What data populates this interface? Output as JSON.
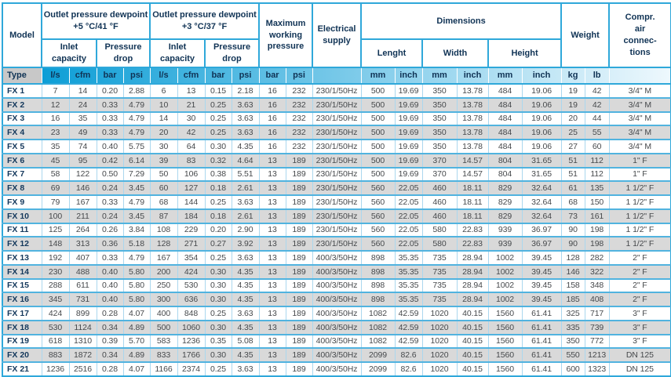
{
  "header": {
    "model": "Model",
    "dewpoint5": "Outlet pressure dewpoint\n+5 °C/41 °F",
    "dewpoint3": "Outlet pressure dewpoint\n+3 °C/37 °F",
    "inlet_capacity": "Inlet\ncapacity",
    "pressure_drop": "Pressure\ndrop",
    "max_pressure": "Maximum\nworking\npressure",
    "electrical": "Electrical\nsupply",
    "dimensions": "Dimensions",
    "length": "Lenght",
    "width": "Width",
    "height": "Height",
    "weight": "Weight",
    "connections": "Compr.\nair\nconnec-\ntions"
  },
  "units": {
    "type": "Type",
    "ls": "l/s",
    "cfm": "cfm",
    "bar": "bar",
    "psi": "psi",
    "mm": "mm",
    "inch": "inch",
    "kg": "kg",
    "lb": "lb"
  },
  "colors": {
    "accent_border": "#2fa8da",
    "row_separator": "#51b3df",
    "cell_divider": "#aad7ee",
    "alt_row": "#d9d9d9",
    "type_cell": "#c8c8c8",
    "units_gradient_start": "#0d9ed6",
    "units_gradient_end": "#eef8fd",
    "header_text": "#103355",
    "data_text": "#46494c"
  },
  "rows": [
    [
      "FX 1",
      "7",
      "14",
      "0.20",
      "2.88",
      "6",
      "13",
      "0.15",
      "2.18",
      "16",
      "232",
      "230/1/50Hz",
      "500",
      "19.69",
      "350",
      "13.78",
      "484",
      "19.06",
      "19",
      "42",
      "3/4\" M"
    ],
    [
      "FX 2",
      "12",
      "24",
      "0.33",
      "4.79",
      "10",
      "21",
      "0.25",
      "3.63",
      "16",
      "232",
      "230/1/50Hz",
      "500",
      "19.69",
      "350",
      "13.78",
      "484",
      "19.06",
      "19",
      "42",
      "3/4\" M"
    ],
    [
      "FX 3",
      "16",
      "35",
      "0.33",
      "4.79",
      "14",
      "30",
      "0.25",
      "3.63",
      "16",
      "232",
      "230/1/50Hz",
      "500",
      "19.69",
      "350",
      "13.78",
      "484",
      "19.06",
      "20",
      "44",
      "3/4\" M"
    ],
    [
      "FX 4",
      "23",
      "49",
      "0.33",
      "4.79",
      "20",
      "42",
      "0.25",
      "3.63",
      "16",
      "232",
      "230/1/50Hz",
      "500",
      "19.69",
      "350",
      "13.78",
      "484",
      "19.06",
      "25",
      "55",
      "3/4\" M"
    ],
    [
      "FX 5",
      "35",
      "74",
      "0.40",
      "5.75",
      "30",
      "64",
      "0.30",
      "4.35",
      "16",
      "232",
      "230/1/50Hz",
      "500",
      "19.69",
      "350",
      "13.78",
      "484",
      "19.06",
      "27",
      "60",
      "3/4\" M"
    ],
    [
      "FX 6",
      "45",
      "95",
      "0.42",
      "6.14",
      "39",
      "83",
      "0.32",
      "4.64",
      "13",
      "189",
      "230/1/50Hz",
      "500",
      "19.69",
      "370",
      "14.57",
      "804",
      "31.65",
      "51",
      "112",
      "1\" F"
    ],
    [
      "FX 7",
      "58",
      "122",
      "0.50",
      "7.29",
      "50",
      "106",
      "0.38",
      "5.51",
      "13",
      "189",
      "230/1/50Hz",
      "500",
      "19.69",
      "370",
      "14.57",
      "804",
      "31.65",
      "51",
      "112",
      "1\" F"
    ],
    [
      "FX 8",
      "69",
      "146",
      "0.24",
      "3.45",
      "60",
      "127",
      "0.18",
      "2.61",
      "13",
      "189",
      "230/1/50Hz",
      "560",
      "22.05",
      "460",
      "18.11",
      "829",
      "32.64",
      "61",
      "135",
      "1 1/2\" F"
    ],
    [
      "FX 9",
      "79",
      "167",
      "0.33",
      "4.79",
      "68",
      "144",
      "0.25",
      "3.63",
      "13",
      "189",
      "230/1/50Hz",
      "560",
      "22.05",
      "460",
      "18.11",
      "829",
      "32.64",
      "68",
      "150",
      "1 1/2\" F"
    ],
    [
      "FX 10",
      "100",
      "211",
      "0.24",
      "3.45",
      "87",
      "184",
      "0.18",
      "2.61",
      "13",
      "189",
      "230/1/50Hz",
      "560",
      "22.05",
      "460",
      "18.11",
      "829",
      "32.64",
      "73",
      "161",
      "1 1/2\" F"
    ],
    [
      "FX 11",
      "125",
      "264",
      "0.26",
      "3.84",
      "108",
      "229",
      "0.20",
      "2.90",
      "13",
      "189",
      "230/1/50Hz",
      "560",
      "22.05",
      "580",
      "22.83",
      "939",
      "36.97",
      "90",
      "198",
      "1 1/2\" F"
    ],
    [
      "FX 12",
      "148",
      "313",
      "0.36",
      "5.18",
      "128",
      "271",
      "0.27",
      "3.92",
      "13",
      "189",
      "230/1/50Hz",
      "560",
      "22.05",
      "580",
      "22.83",
      "939",
      "36.97",
      "90",
      "198",
      "1 1/2\" F"
    ],
    [
      "FX 13",
      "192",
      "407",
      "0.33",
      "4.79",
      "167",
      "354",
      "0.25",
      "3.63",
      "13",
      "189",
      "400/3/50Hz",
      "898",
      "35.35",
      "735",
      "28.94",
      "1002",
      "39.45",
      "128",
      "282",
      "2\" F"
    ],
    [
      "FX 14",
      "230",
      "488",
      "0.40",
      "5.80",
      "200",
      "424",
      "0.30",
      "4.35",
      "13",
      "189",
      "400/3/50Hz",
      "898",
      "35.35",
      "735",
      "28.94",
      "1002",
      "39.45",
      "146",
      "322",
      "2\" F"
    ],
    [
      "FX 15",
      "288",
      "611",
      "0.40",
      "5.80",
      "250",
      "530",
      "0.30",
      "4.35",
      "13",
      "189",
      "400/3/50Hz",
      "898",
      "35.35",
      "735",
      "28.94",
      "1002",
      "39.45",
      "158",
      "348",
      "2\" F"
    ],
    [
      "FX 16",
      "345",
      "731",
      "0.40",
      "5.80",
      "300",
      "636",
      "0.30",
      "4.35",
      "13",
      "189",
      "400/3/50Hz",
      "898",
      "35.35",
      "735",
      "28.94",
      "1002",
      "39.45",
      "185",
      "408",
      "2\" F"
    ],
    [
      "FX 17",
      "424",
      "899",
      "0.28",
      "4.07",
      "400",
      "848",
      "0.25",
      "3.63",
      "13",
      "189",
      "400/3/50Hz",
      "1082",
      "42.59",
      "1020",
      "40.15",
      "1560",
      "61.41",
      "325",
      "717",
      "3\" F"
    ],
    [
      "FX 18",
      "530",
      "1124",
      "0.34",
      "4.89",
      "500",
      "1060",
      "0.30",
      "4.35",
      "13",
      "189",
      "400/3/50Hz",
      "1082",
      "42.59",
      "1020",
      "40.15",
      "1560",
      "61.41",
      "335",
      "739",
      "3\" F"
    ],
    [
      "FX 19",
      "618",
      "1310",
      "0.39",
      "5.70",
      "583",
      "1236",
      "0.35",
      "5.08",
      "13",
      "189",
      "400/3/50Hz",
      "1082",
      "42.59",
      "1020",
      "40.15",
      "1560",
      "61.41",
      "350",
      "772",
      "3\" F"
    ],
    [
      "FX 20",
      "883",
      "1872",
      "0.34",
      "4.89",
      "833",
      "1766",
      "0.30",
      "4.35",
      "13",
      "189",
      "400/3/50Hz",
      "2099",
      "82.6",
      "1020",
      "40.15",
      "1560",
      "61.41",
      "550",
      "1213",
      "DN 125"
    ],
    [
      "FX 21",
      "1236",
      "2516",
      "0.28",
      "4.07",
      "1166",
      "2374",
      "0.25",
      "3.63",
      "13",
      "189",
      "400/3/50Hz",
      "2099",
      "82.6",
      "1020",
      "40.15",
      "1560",
      "61.41",
      "600",
      "1323",
      "DN 125"
    ]
  ]
}
